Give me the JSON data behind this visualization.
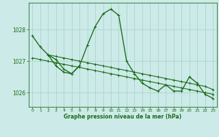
{
  "title": "Graphe pression niveau de la mer (hPa)",
  "background_color": "#cceae7",
  "grid_color": "#aad4d0",
  "line_color": "#1a6b1a",
  "xlim": [
    -0.5,
    23.5
  ],
  "ylim": [
    1025.55,
    1028.85
  ],
  "yticks": [
    1026,
    1027,
    1028
  ],
  "xticks": [
    0,
    1,
    2,
    3,
    4,
    5,
    6,
    7,
    8,
    9,
    10,
    11,
    12,
    13,
    14,
    15,
    16,
    17,
    18,
    19,
    20,
    21,
    22,
    23
  ],
  "series": [
    {
      "x": [
        0,
        1,
        2,
        3,
        4,
        5,
        6,
        7,
        8,
        9,
        10,
        11,
        12,
        13,
        14,
        15,
        16,
        17,
        18,
        19,
        20,
        21,
        22,
        23
      ],
      "y": [
        1027.8,
        1027.45,
        1027.2,
        1027.05,
        1026.75,
        1026.6,
        1026.85,
        1027.5,
        1028.1,
        1028.5,
        1028.65,
        1028.45,
        1027.0,
        1026.6,
        1026.3,
        1026.15,
        1026.05,
        1026.25,
        1026.05,
        1026.05,
        1026.5,
        1026.3,
        1025.95,
        1025.82
      ]
    },
    {
      "x": [
        2,
        3,
        4,
        5,
        6,
        7,
        8,
        9,
        10,
        11,
        12,
        13,
        14,
        15,
        16,
        17,
        18,
        19,
        20,
        21,
        22,
        23
      ],
      "y": [
        1027.2,
        1027.15,
        1027.1,
        1027.05,
        1027.0,
        1026.95,
        1026.9,
        1026.85,
        1026.8,
        1026.75,
        1026.7,
        1026.65,
        1026.6,
        1026.55,
        1026.5,
        1026.45,
        1026.4,
        1026.35,
        1026.3,
        1026.25,
        1026.2,
        1026.1
      ]
    },
    {
      "x": [
        0,
        1,
        2,
        3,
        4,
        5,
        6,
        7,
        8,
        9,
        10,
        11,
        12,
        13,
        14,
        15,
        16,
        17,
        18,
        19,
        20,
        21,
        22,
        23
      ],
      "y": [
        1027.1,
        1027.05,
        1027.0,
        1026.95,
        1026.9,
        1026.85,
        1026.8,
        1026.75,
        1026.7,
        1026.65,
        1026.6,
        1026.55,
        1026.5,
        1026.45,
        1026.4,
        1026.35,
        1026.3,
        1026.25,
        1026.2,
        1026.15,
        1026.1,
        1026.05,
        1026.0,
        1025.95
      ]
    },
    {
      "x": [
        2,
        3,
        4,
        5,
        6
      ],
      "y": [
        1027.2,
        1026.85,
        1026.65,
        1026.6,
        1026.85
      ]
    }
  ]
}
